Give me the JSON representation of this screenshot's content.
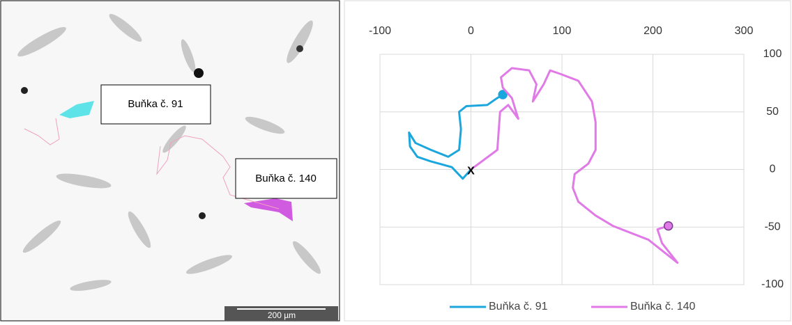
{
  "image": {
    "labels": [
      "Buňka č. 91",
      "Buňka č. 140"
    ],
    "scale_bar": "200 µm"
  },
  "chart_data": {
    "type": "line",
    "origin_label": "X",
    "xlim": [
      -100,
      300
    ],
    "xticks": [
      -100,
      0,
      100,
      200,
      300
    ],
    "ylim": [
      -100,
      100
    ],
    "yticks": [
      -100,
      -50,
      0,
      50,
      100
    ],
    "grid": true,
    "legend": "bottom",
    "series": [
      {
        "name": "Buňka č. 91",
        "color": "#1ba6dd",
        "x": [
          0,
          -9,
          -21,
          -44,
          -59,
          -67,
          -68,
          -61,
          -44,
          -25,
          -13,
          -11,
          -13,
          -5,
          18,
          27,
          35
        ],
        "y": [
          0,
          -8,
          2,
          7,
          11,
          20,
          32,
          23,
          17,
          11,
          17,
          35,
          50,
          55,
          56,
          61,
          65
        ]
      },
      {
        "name": "Buňka č. 140",
        "color": "#e07ae6",
        "x": [
          0,
          29,
          32,
          41,
          52,
          45,
          35,
          33,
          45,
          64,
          72,
          68,
          80,
          87,
          98,
          118,
          133,
          137,
          137,
          129,
          114,
          112,
          118,
          137,
          156,
          195,
          227,
          210,
          205,
          217
        ],
        "y": [
          0,
          17,
          50,
          56,
          44,
          62,
          71,
          80,
          88,
          86,
          74,
          59,
          74,
          86,
          83,
          77,
          59,
          41,
          17,
          5,
          -4,
          -16,
          -28,
          -40,
          -49,
          -61,
          -81,
          -64,
          -52,
          -49
        ]
      }
    ]
  }
}
